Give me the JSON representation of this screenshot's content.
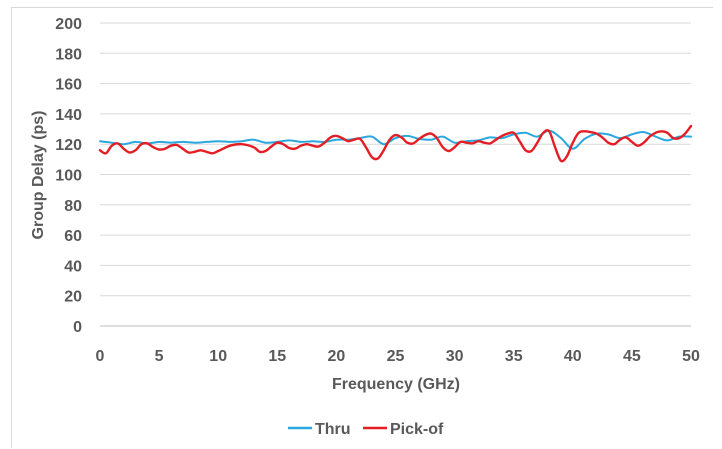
{
  "chart_data": {
    "type": "line",
    "title": "",
    "xlabel": "Frequency (GHz)",
    "ylabel": "Group Delay (ps)",
    "xlim": [
      0,
      50
    ],
    "ylim": [
      0,
      200
    ],
    "x_ticks": [
      0,
      5,
      10,
      15,
      20,
      25,
      30,
      35,
      40,
      45,
      50
    ],
    "y_ticks": [
      0,
      20,
      40,
      60,
      80,
      100,
      120,
      140,
      160,
      180,
      200
    ],
    "grid": "horizontal",
    "legend_position": "bottom",
    "series": [
      {
        "name": "Thru",
        "color": "#2aa7de",
        "points": [
          [
            0,
            122
          ],
          [
            1,
            121
          ],
          [
            2,
            120
          ],
          [
            3,
            121.5
          ],
          [
            4,
            120.5
          ],
          [
            5,
            121.5
          ],
          [
            6,
            121
          ],
          [
            7,
            121.5
          ],
          [
            8,
            121
          ],
          [
            9,
            121.5
          ],
          [
            10,
            122
          ],
          [
            11,
            121.5
          ],
          [
            12,
            122
          ],
          [
            13,
            123
          ],
          [
            14,
            121
          ],
          [
            15,
            121.5
          ],
          [
            16,
            122.5
          ],
          [
            17,
            121.5
          ],
          [
            18,
            122
          ],
          [
            19,
            121.5
          ],
          [
            20,
            123
          ],
          [
            21,
            123
          ],
          [
            22,
            124
          ],
          [
            23,
            125
          ],
          [
            24,
            120
          ],
          [
            25,
            124
          ],
          [
            26,
            125.5
          ],
          [
            27,
            123.5
          ],
          [
            28,
            123
          ],
          [
            29,
            125
          ],
          [
            30,
            121
          ],
          [
            31,
            122
          ],
          [
            32,
            122.5
          ],
          [
            33,
            124.5
          ],
          [
            34,
            124
          ],
          [
            35,
            126.5
          ],
          [
            36,
            127.5
          ],
          [
            37,
            125
          ],
          [
            38,
            129
          ],
          [
            39,
            124
          ],
          [
            40,
            117
          ],
          [
            41,
            123.5
          ],
          [
            42,
            127
          ],
          [
            43,
            126.5
          ],
          [
            44,
            124
          ],
          [
            45,
            126.5
          ],
          [
            46,
            128
          ],
          [
            47,
            125
          ],
          [
            48,
            122.5
          ],
          [
            49,
            125
          ],
          [
            50,
            125
          ]
        ]
      },
      {
        "name": "Pick-of",
        "color": "#e31e24",
        "points": [
          [
            0,
            116
          ],
          [
            0.5,
            114
          ],
          [
            1,
            119
          ],
          [
            1.5,
            120.5
          ],
          [
            2,
            117
          ],
          [
            2.5,
            114.5
          ],
          [
            3,
            116
          ],
          [
            3.5,
            120
          ],
          [
            4,
            120.5
          ],
          [
            4.5,
            118
          ],
          [
            5,
            116.5
          ],
          [
            5.5,
            117
          ],
          [
            6,
            119
          ],
          [
            6.5,
            119.5
          ],
          [
            7,
            117
          ],
          [
            7.5,
            114.5
          ],
          [
            8,
            115
          ],
          [
            8.5,
            116
          ],
          [
            9,
            115
          ],
          [
            9.5,
            114
          ],
          [
            10,
            115.5
          ],
          [
            11,
            119
          ],
          [
            12,
            120
          ],
          [
            13,
            118
          ],
          [
            13.5,
            115
          ],
          [
            14,
            115.5
          ],
          [
            14.5,
            118.5
          ],
          [
            15,
            121
          ],
          [
            15.5,
            120
          ],
          [
            16,
            117.5
          ],
          [
            16.5,
            117
          ],
          [
            17,
            119
          ],
          [
            17.5,
            120
          ],
          [
            18,
            119
          ],
          [
            18.5,
            118.5
          ],
          [
            19,
            121
          ],
          [
            19.5,
            124.5
          ],
          [
            20,
            125.5
          ],
          [
            20.5,
            124
          ],
          [
            21,
            122
          ],
          [
            21.5,
            123
          ],
          [
            22,
            123.5
          ],
          [
            22.5,
            118
          ],
          [
            23,
            111.5
          ],
          [
            23.5,
            110.5
          ],
          [
            24,
            116
          ],
          [
            24.5,
            123
          ],
          [
            25,
            126
          ],
          [
            25.5,
            124.5
          ],
          [
            26,
            121
          ],
          [
            26.5,
            120.5
          ],
          [
            27,
            123.5
          ],
          [
            27.5,
            126
          ],
          [
            28,
            127
          ],
          [
            28.5,
            124
          ],
          [
            29,
            118
          ],
          [
            29.5,
            115.5
          ],
          [
            30,
            118
          ],
          [
            30.5,
            121.5
          ],
          [
            31,
            121
          ],
          [
            31.5,
            120.5
          ],
          [
            32,
            122
          ],
          [
            32.5,
            121
          ],
          [
            33,
            120.5
          ],
          [
            33.5,
            123
          ],
          [
            34,
            125.5
          ],
          [
            34.5,
            127
          ],
          [
            35,
            127.5
          ],
          [
            35.5,
            122
          ],
          [
            36,
            116
          ],
          [
            36.5,
            115.5
          ],
          [
            37,
            121
          ],
          [
            37.5,
            127.5
          ],
          [
            38,
            128.5
          ],
          [
            38.5,
            118
          ],
          [
            39,
            109
          ],
          [
            39.5,
            112
          ],
          [
            40,
            121
          ],
          [
            40.5,
            127.5
          ],
          [
            41,
            128.5
          ],
          [
            41.5,
            128
          ],
          [
            42,
            127
          ],
          [
            42.5,
            124.5
          ],
          [
            43,
            121
          ],
          [
            43.5,
            120
          ],
          [
            44,
            123
          ],
          [
            44.5,
            124.5
          ],
          [
            45,
            121.5
          ],
          [
            45.5,
            119
          ],
          [
            46,
            121
          ],
          [
            46.5,
            125
          ],
          [
            47,
            127.5
          ],
          [
            47.5,
            128.5
          ],
          [
            48,
            127.5
          ],
          [
            48.5,
            124
          ],
          [
            49,
            124
          ],
          [
            49.5,
            127
          ],
          [
            50,
            132
          ]
        ]
      }
    ]
  }
}
